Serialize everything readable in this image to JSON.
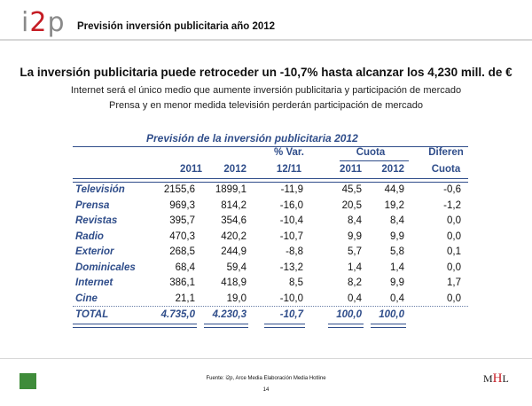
{
  "header": {
    "logo_i": "i",
    "logo_2": "2",
    "logo_p": "p",
    "title": "Previsión inversión publicitaria año 2012"
  },
  "headline": "La inversión publicitaria puede retroceder un -10,7% hasta alcanzar los 4,230 mill. de €",
  "subheadlines": [
    "Internet será el único medio que aumente inversión publicitaria y participación de mercado",
    "Prensa y en menor medida televisión perderán participación de mercado"
  ],
  "table": {
    "title": "Previsión de la inversión publicitaria 2012",
    "header_top": [
      "% Var.",
      "Cuota",
      "Diferen"
    ],
    "header_bottom": [
      "2011",
      "2012",
      "12/11",
      "2011",
      "2012",
      "Cuota"
    ],
    "rows": [
      {
        "medium": "Televisión",
        "v2011": "2155,6",
        "v2012": "1899,1",
        "var": "-11,9",
        "c2011": "45,5",
        "c2012": "44,9",
        "diff": "-0,6"
      },
      {
        "medium": "Prensa",
        "v2011": "969,3",
        "v2012": "814,2",
        "var": "-16,0",
        "c2011": "20,5",
        "c2012": "19,2",
        "diff": "-1,2"
      },
      {
        "medium": "Revistas",
        "v2011": "395,7",
        "v2012": "354,6",
        "var": "-10,4",
        "c2011": "8,4",
        "c2012": "8,4",
        "diff": "0,0"
      },
      {
        "medium": "Radio",
        "v2011": "470,3",
        "v2012": "420,2",
        "var": "-10,7",
        "c2011": "9,9",
        "c2012": "9,9",
        "diff": "0,0"
      },
      {
        "medium": "Exterior",
        "v2011": "268,5",
        "v2012": "244,9",
        "var": "-8,8",
        "c2011": "5,7",
        "c2012": "5,8",
        "diff": "0,1"
      },
      {
        "medium": "Dominicales",
        "v2011": "68,4",
        "v2012": "59,4",
        "var": "-13,2",
        "c2011": "1,4",
        "c2012": "1,4",
        "diff": "0,0"
      },
      {
        "medium": "Internet",
        "v2011": "386,1",
        "v2012": "418,9",
        "var": "8,5",
        "c2011": "8,2",
        "c2012": "9,9",
        "diff": "1,7"
      },
      {
        "medium": "Cine",
        "v2011": "21,1",
        "v2012": "19,0",
        "var": "-10,0",
        "c2011": "0,4",
        "c2012": "0,4",
        "diff": "0,0"
      }
    ],
    "total": {
      "medium": "TOTAL",
      "v2011": "4.735,0",
      "v2012": "4.230,3",
      "var": "-10,7",
      "c2011": "100,0",
      "c2012": "100,0"
    }
  },
  "footer": {
    "source": "Fuente: i2p, Arce Media Elaboración Media Hotline",
    "page": "14",
    "mhl_m": "M",
    "mhl_h": "H",
    "mhl_l": "L"
  }
}
